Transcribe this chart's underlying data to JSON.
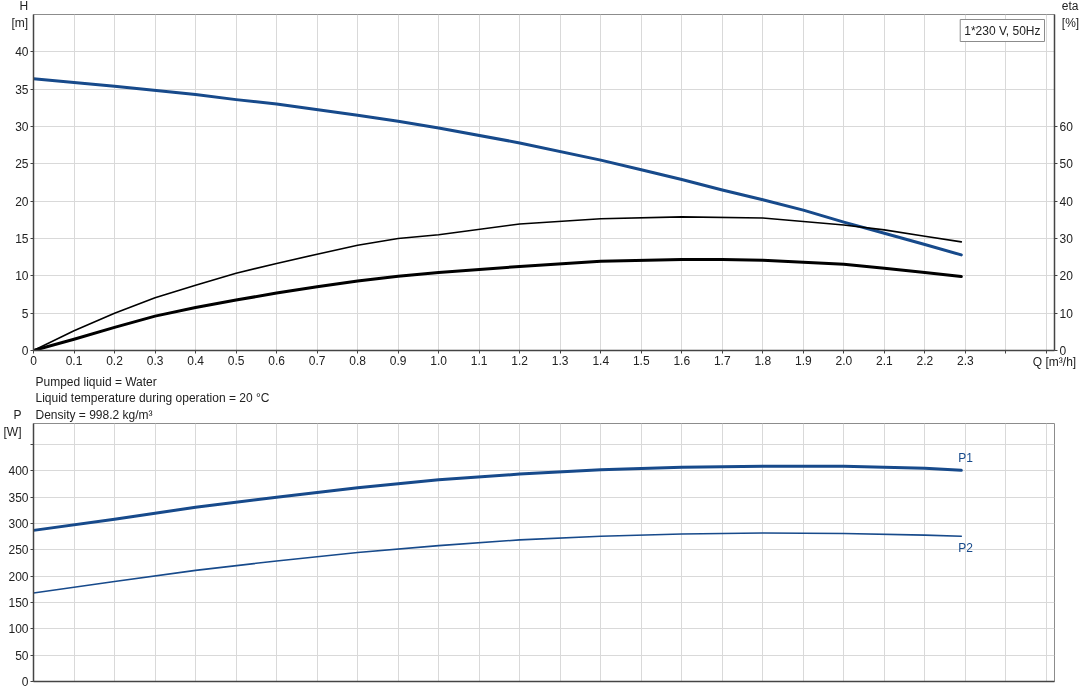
{
  "chart_data": [
    {
      "type": "line",
      "xlabel": "Q [m³/h]",
      "ylabel": "H [m]",
      "y2label": "eta [%]",
      "xlim": [
        0,
        2.52
      ],
      "xticks": [
        0,
        0.1,
        0.2,
        0.3,
        0.4,
        0.5,
        0.6,
        0.7,
        0.8,
        0.9,
        {
          "value": 1,
          "label": "1.0"
        },
        1.1,
        1.2,
        1.3,
        1.4,
        1.5,
        1.6,
        1.7,
        1.8,
        1.9,
        {
          "value": 2,
          "label": "2.0"
        },
        2.1,
        2.2,
        2.3,
        {
          "value": 2.4,
          "label": null
        },
        {
          "value": 2.5,
          "label": null
        }
      ],
      "ylim": [
        0,
        45
      ],
      "yticks": [
        0,
        5,
        10,
        15,
        20,
        25,
        30,
        35,
        40
      ],
      "y2lim": [
        0,
        90
      ],
      "y2ticks": [
        0,
        10,
        20,
        30,
        40,
        50,
        60
      ],
      "grid": true,
      "series": [
        {
          "color": "#174a8b",
          "x": [
            0,
            0.2,
            0.4,
            0.5,
            0.6,
            0.8,
            0.9,
            1.0,
            1.2,
            1.4,
            1.5,
            1.6,
            1.7,
            1.8,
            1.9,
            2.0,
            2.1,
            2.2,
            2.29
          ],
          "values": [
            36.4,
            35.4,
            34.3,
            33.6,
            33.0,
            31.5,
            30.7,
            29.8,
            27.8,
            25.5,
            24.2,
            22.9,
            21.5,
            20.2,
            18.8,
            17.2,
            15.7,
            14.2,
            12.8
          ]
        },
        {
          "color": "#000000",
          "axis": "y2",
          "x": [
            0,
            0.1,
            0.2,
            0.3,
            0.4,
            0.5,
            0.6,
            0.7,
            0.8,
            0.9,
            1.0,
            1.2,
            1.4,
            1.6,
            1.8,
            2.0,
            2.1,
            2.2,
            2.29
          ],
          "values": [
            0,
            5.3,
            10.0,
            14.1,
            17.5,
            20.7,
            23.3,
            25.8,
            28.2,
            30.0,
            31.0,
            33.9,
            35.3,
            35.8,
            35.5,
            33.6,
            32.3,
            30.6,
            29.1
          ]
        },
        {
          "color": "#000000",
          "axis": "y2",
          "x": [
            0,
            0.1,
            0.2,
            0.3,
            0.4,
            0.5,
            0.6,
            0.7,
            0.8,
            0.9,
            1.0,
            1.2,
            1.4,
            1.6,
            1.7,
            1.8,
            2.0,
            2.1,
            2.2,
            2.29
          ],
          "values": [
            0,
            3.0,
            6.2,
            9.2,
            11.5,
            13.5,
            15.4,
            17.1,
            18.6,
            19.9,
            20.9,
            22.5,
            23.9,
            24.4,
            24.4,
            24.2,
            23.1,
            22.0,
            20.9,
            19.8
          ]
        }
      ],
      "annotations": [
        "1*230 V, 50Hz"
      ]
    },
    {
      "type": "line",
      "ylabel": "P [W]",
      "tick_labels": "y",
      "xlim": [
        0,
        2.52
      ],
      "xticks": [
        0,
        0.1,
        0.2,
        0.3,
        0.4,
        0.5,
        0.6,
        0.7,
        0.8,
        0.9,
        1.0,
        1.1,
        1.2,
        1.3,
        1.4,
        1.5,
        1.6,
        1.7,
        1.8,
        1.9,
        2.0,
        2.1,
        2.2,
        2.3,
        2.4,
        2.5
      ],
      "ylim": [
        0,
        490
      ],
      "yticks": [
        0,
        50,
        100,
        150,
        200,
        250,
        300,
        350,
        400,
        {
          "value": 450,
          "label": null
        }
      ],
      "grid": true,
      "series": [
        {
          "name": "P1",
          "color": "#174a8b",
          "x": [
            0,
            0.2,
            0.4,
            0.6,
            0.8,
            1.0,
            1.2,
            1.4,
            1.6,
            1.8,
            2.0,
            2.2,
            2.29
          ],
          "values": [
            287,
            308,
            331,
            350,
            368,
            383,
            394,
            402,
            407,
            409,
            409,
            405,
            401
          ]
        },
        {
          "name": "P2",
          "color": "#174a8b",
          "x": [
            0,
            0.2,
            0.4,
            0.6,
            0.8,
            1.0,
            1.2,
            1.4,
            1.6,
            1.8,
            2.0,
            2.2,
            2.29
          ],
          "values": [
            168,
            190,
            211,
            229,
            245,
            258,
            269,
            276,
            280,
            282,
            281,
            278,
            276
          ]
        }
      ],
      "annotations": [
        "Pumped liquid = Water",
        "Liquid temperature during operation = 20 °C",
        "Density = 998.2 kg/m³"
      ]
    }
  ]
}
